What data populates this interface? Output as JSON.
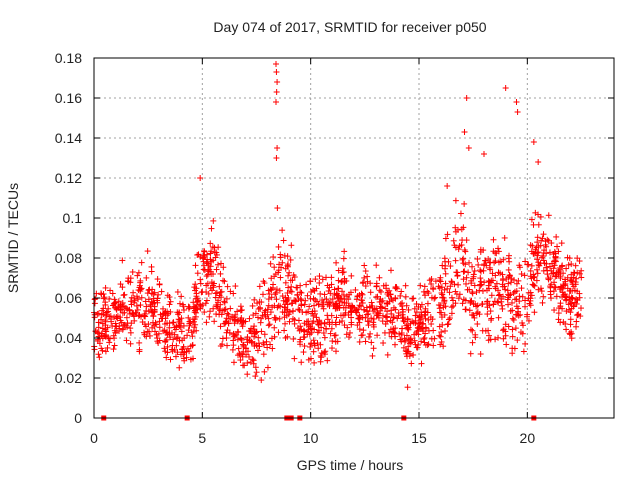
{
  "chart_data": {
    "type": "scatter",
    "title": "Day 074 of 2017, SRMTID for receiver p050",
    "xlabel": "GPS time / hours",
    "ylabel": "SRMTID / TECUs",
    "xlim": [
      0,
      24
    ],
    "ylim": [
      0,
      0.18
    ],
    "xticks": [
      0,
      5,
      10,
      15,
      20
    ],
    "xtick_labels": [
      "0",
      "5",
      "10",
      "15",
      "20"
    ],
    "yticks": [
      0,
      0.02,
      0.04,
      0.06,
      0.08,
      0.1,
      0.12,
      0.14,
      0.16,
      0.18
    ],
    "ytick_labels": [
      "0",
      "0.02",
      "0.04",
      "0.06",
      "0.08",
      "0.1",
      "0.12",
      "0.14",
      "0.16",
      "0.18"
    ],
    "grid": true,
    "marker": "+",
    "color": "#ff0000",
    "zero_markers_x": [
      0.45,
      4.3,
      8.9,
      9.1,
      9.5,
      14.3,
      20.3
    ],
    "series_envelope": [
      [
        0.0,
        0.05,
        0.012
      ],
      [
        0.5,
        0.048,
        0.012
      ],
      [
        1.0,
        0.05,
        0.013
      ],
      [
        1.5,
        0.055,
        0.014
      ],
      [
        2.0,
        0.058,
        0.015
      ],
      [
        2.5,
        0.056,
        0.016
      ],
      [
        3.0,
        0.052,
        0.014
      ],
      [
        3.5,
        0.045,
        0.012
      ],
      [
        4.0,
        0.04,
        0.012
      ],
      [
        4.5,
        0.045,
        0.013
      ],
      [
        5.0,
        0.07,
        0.016
      ],
      [
        5.5,
        0.075,
        0.016
      ],
      [
        6.0,
        0.05,
        0.014
      ],
      [
        6.5,
        0.045,
        0.013
      ],
      [
        7.0,
        0.038,
        0.013
      ],
      [
        7.5,
        0.045,
        0.014
      ],
      [
        8.0,
        0.05,
        0.015
      ],
      [
        8.5,
        0.075,
        0.02
      ],
      [
        9.0,
        0.062,
        0.015
      ],
      [
        9.5,
        0.05,
        0.013
      ],
      [
        10.0,
        0.048,
        0.013
      ],
      [
        10.5,
        0.05,
        0.014
      ],
      [
        11.0,
        0.052,
        0.014
      ],
      [
        11.5,
        0.06,
        0.015
      ],
      [
        12.0,
        0.058,
        0.015
      ],
      [
        12.5,
        0.055,
        0.014
      ],
      [
        13.0,
        0.052,
        0.014
      ],
      [
        13.5,
        0.056,
        0.015
      ],
      [
        14.0,
        0.055,
        0.015
      ],
      [
        14.5,
        0.04,
        0.015
      ],
      [
        15.0,
        0.05,
        0.014
      ],
      [
        15.5,
        0.05,
        0.013
      ],
      [
        16.0,
        0.055,
        0.015
      ],
      [
        16.5,
        0.07,
        0.018
      ],
      [
        17.0,
        0.075,
        0.022
      ],
      [
        17.5,
        0.06,
        0.018
      ],
      [
        18.0,
        0.062,
        0.018
      ],
      [
        18.5,
        0.066,
        0.02
      ],
      [
        19.0,
        0.065,
        0.022
      ],
      [
        19.5,
        0.055,
        0.018
      ],
      [
        20.0,
        0.065,
        0.02
      ],
      [
        20.5,
        0.085,
        0.018
      ],
      [
        21.0,
        0.08,
        0.016
      ],
      [
        21.5,
        0.065,
        0.015
      ],
      [
        22.0,
        0.06,
        0.014
      ],
      [
        22.5,
        0.065,
        0.014
      ]
    ],
    "outliers": [
      [
        8.4,
        0.177
      ],
      [
        8.42,
        0.173
      ],
      [
        8.45,
        0.168
      ],
      [
        8.43,
        0.163
      ],
      [
        8.4,
        0.158
      ],
      [
        8.45,
        0.135
      ],
      [
        8.42,
        0.13
      ],
      [
        4.9,
        0.12
      ],
      [
        19.0,
        0.165
      ],
      [
        19.5,
        0.158
      ],
      [
        19.55,
        0.153
      ],
      [
        17.2,
        0.16
      ],
      [
        17.1,
        0.143
      ],
      [
        17.3,
        0.135
      ],
      [
        20.3,
        0.138
      ],
      [
        20.5,
        0.128
      ],
      [
        18.0,
        0.132
      ],
      [
        16.3,
        0.116
      ]
    ]
  }
}
